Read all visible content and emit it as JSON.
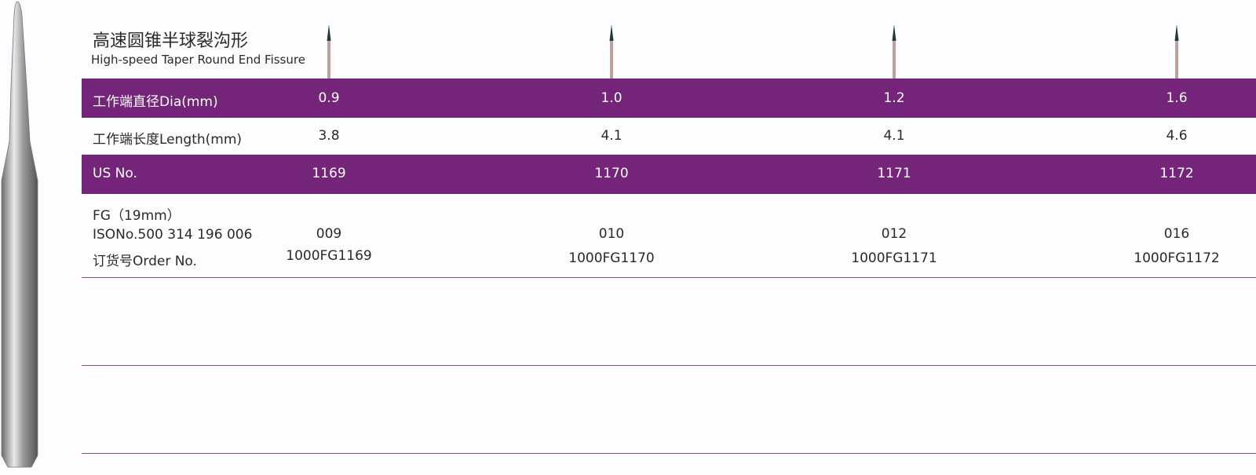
{
  "header": {
    "title_cn": "高速圆锥半球裂沟形",
    "title_en": "High-speed Taper Round End Fissure"
  },
  "table": {
    "rows": [
      {
        "label": "工作端直径Dia(mm)",
        "cells": [
          "0.9",
          "1.0",
          "1.2",
          "1.6"
        ]
      },
      {
        "label": "工作端长度Length(mm)",
        "cells": [
          "3.8",
          "4.1",
          "4.1",
          "4.6"
        ]
      },
      {
        "label": "US No.",
        "cells": [
          "1169",
          "1170",
          "1171",
          "1172"
        ]
      },
      {
        "label_lines": [
          "FG（19mm）",
          "ISONo.500 314 196 006",
          "订货号Order No."
        ],
        "cells": [
          [
            "009",
            "1000FG1169"
          ],
          [
            "010",
            "1000FG1170"
          ],
          [
            "012",
            "1000FG1171"
          ],
          [
            "016",
            "1000FG1172"
          ]
        ]
      }
    ]
  }
}
